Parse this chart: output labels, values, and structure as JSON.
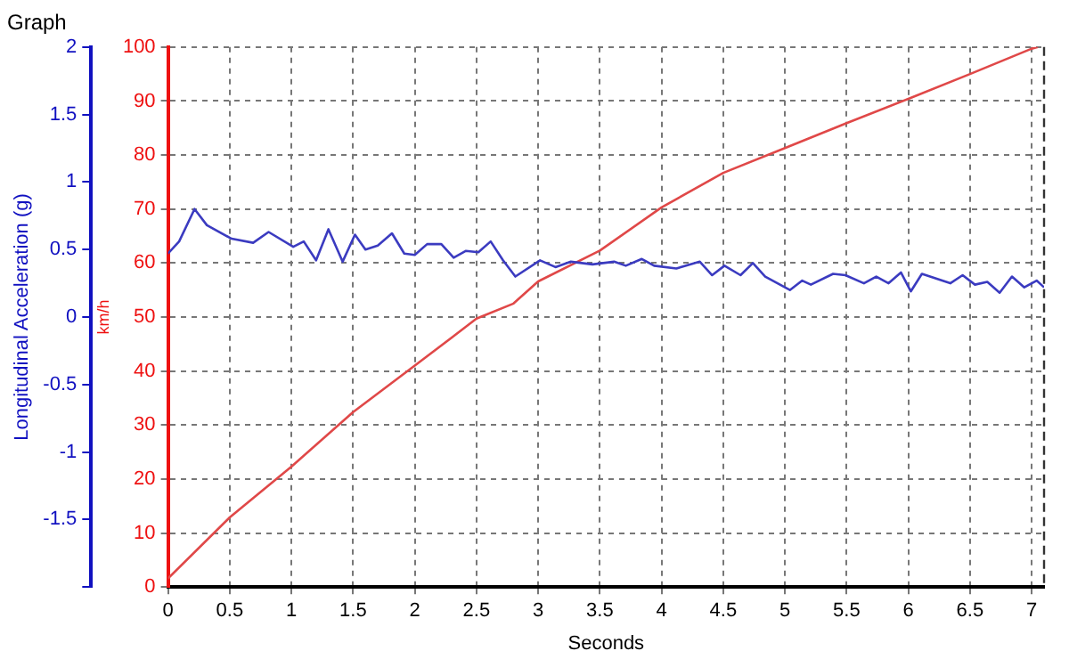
{
  "chart_data": {
    "type": "line",
    "title": "Graph",
    "xlabel": "Seconds",
    "ylabel": "Longitudinal Acceleration (g)",
    "y2label": "km/h",
    "xlim": [
      0,
      7.1
    ],
    "xticks": [
      0,
      0.5,
      1,
      1.5,
      2,
      2.5,
      3,
      3.5,
      4,
      4.5,
      5,
      5.5,
      6,
      6.5,
      7
    ],
    "ylim": [
      -2,
      2
    ],
    "yticks": [
      {
        "value": -2,
        "label": null
      },
      -1.5,
      -1,
      -0.5,
      0,
      0.5,
      1,
      1.5,
      2
    ],
    "y2lim": [
      0,
      100
    ],
    "y2ticks": [
      0,
      10,
      20,
      30,
      40,
      50,
      60,
      70,
      80,
      90,
      100
    ],
    "grid": true,
    "marker": "none",
    "line_style": "solid",
    "series": [
      {
        "color": "#3b3bc0",
        "axis": "y",
        "x": [
          0,
          0.09,
          0.215,
          0.315,
          0.515,
          0.69,
          0.815,
          1.015,
          1.1,
          1.2,
          1.3,
          1.415,
          1.515,
          1.6,
          1.7,
          1.815,
          1.915,
          2.0,
          2.1,
          2.215,
          2.315,
          2.415,
          2.515,
          2.615,
          2.715,
          2.815,
          3.015,
          3.14,
          3.265,
          3.44,
          3.615,
          3.71,
          3.84,
          3.94,
          4.12,
          4.31,
          4.41,
          4.51,
          4.64,
          4.74,
          4.84,
          5.04,
          5.14,
          5.21,
          5.39,
          5.49,
          5.64,
          5.74,
          5.84,
          5.94,
          6.02,
          6.11,
          6.34,
          6.44,
          6.54,
          6.64,
          6.74,
          6.84,
          6.94,
          7.04,
          7.1
        ],
        "values": [
          0.47,
          0.56,
          0.8,
          0.68,
          0.58,
          0.55,
          0.63,
          0.52,
          0.56,
          0.42,
          0.65,
          0.41,
          0.61,
          0.5,
          0.53,
          0.62,
          0.47,
          0.46,
          0.54,
          0.54,
          0.44,
          0.49,
          0.48,
          0.56,
          0.42,
          0.3,
          0.42,
          0.37,
          0.41,
          0.39,
          0.41,
          0.38,
          0.43,
          0.38,
          0.36,
          0.41,
          0.31,
          0.38,
          0.31,
          0.4,
          0.3,
          0.2,
          0.27,
          0.24,
          0.32,
          0.31,
          0.25,
          0.3,
          0.25,
          0.33,
          0.19,
          0.32,
          0.25,
          0.31,
          0.24,
          0.26,
          0.18,
          0.3,
          0.22,
          0.27,
          0.22
        ]
      },
      {
        "color": "#e04848",
        "axis": "y2",
        "x": [
          0,
          0.5,
          1,
          1.5,
          2,
          2.5,
          2.8,
          3,
          3.5,
          4,
          4.5,
          5,
          5.5,
          6,
          6.5,
          7,
          7.05
        ],
        "values": [
          1.6,
          12.9,
          22.3,
          32.4,
          41,
          49.7,
          52.5,
          56.6,
          62.3,
          70.3,
          76.7,
          81.3,
          85.9,
          90.4,
          95,
          99.7,
          100
        ]
      }
    ]
  }
}
